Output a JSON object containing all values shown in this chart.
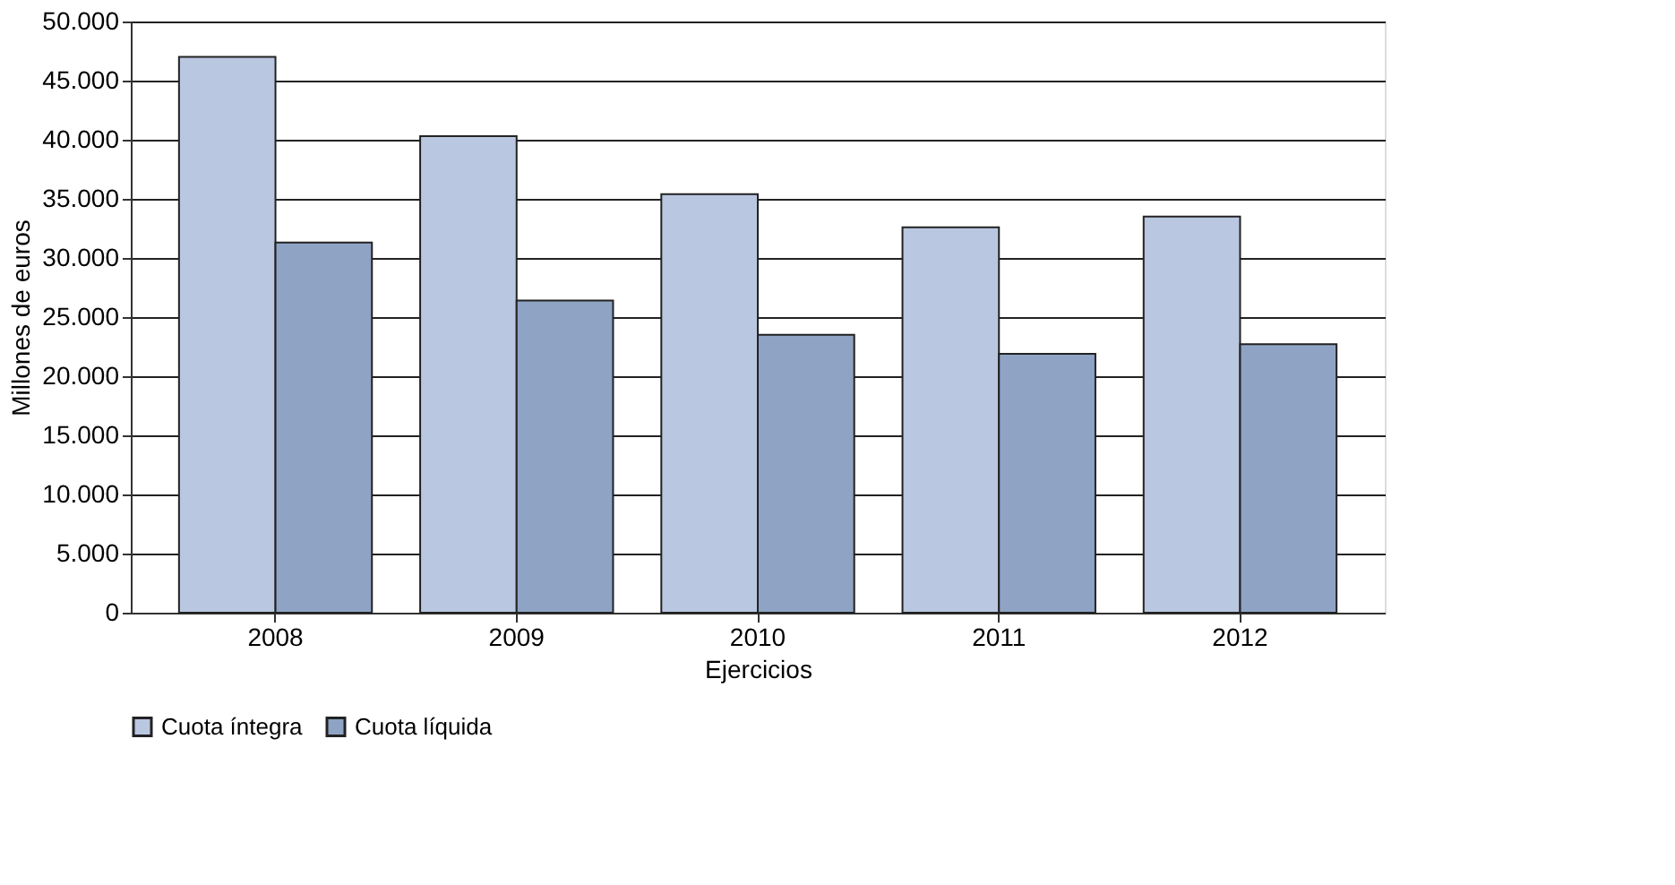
{
  "chart_data": {
    "type": "bar",
    "xlabel": "Ejercicios",
    "ylabel": "Millones de euros",
    "categories": [
      "2008",
      "2009",
      "2010",
      "2011",
      "2012"
    ],
    "series": [
      {
        "name": "Cuota íntegra",
        "color": "#b9c7e0",
        "values": [
          47000,
          40300,
          35400,
          32600,
          33500
        ]
      },
      {
        "name": "Cuota líquida",
        "color": "#8fa3c4",
        "values": [
          31300,
          26400,
          23500,
          21900,
          22700
        ]
      }
    ],
    "ylim": [
      0,
      50000
    ],
    "yticks": [
      0,
      {
        "value": 5000,
        "label": "5.000"
      },
      {
        "value": 10000,
        "label": "10.000"
      },
      {
        "value": 15000,
        "label": "15.000"
      },
      {
        "value": 20000,
        "label": "20.000"
      },
      {
        "value": 25000,
        "label": "25.000"
      },
      {
        "value": 30000,
        "label": "30.000"
      },
      {
        "value": 35000,
        "label": "35.000"
      },
      {
        "value": 40000,
        "label": "40.000"
      },
      {
        "value": 45000,
        "label": "45.000"
      },
      {
        "value": 50000,
        "label": "50.000"
      }
    ],
    "grid": "y",
    "legend": "bottom"
  }
}
